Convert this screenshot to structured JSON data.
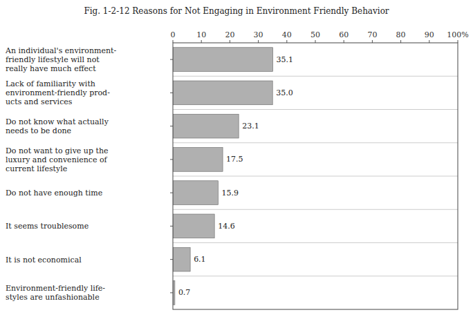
{
  "chart_data": {
    "type": "bar",
    "orientation": "horizontal",
    "title": "Fig. 1-2-12 Reasons for Not Engaging in Environment Friendly Behavior",
    "categories": [
      "An individual's environment-\nfriendly lifestyle will not\nreally have much effect",
      "Lack of familiarity with\nenvironment-friendly prod-\nucts and services",
      "Do not know what actually\nneeds to be done",
      "Do not want to give up the\nluxury and convenience of\ncurrent lifestyle",
      "Do not have enough time",
      "It seems troublesome",
      "It is not economical",
      "Environment-friendly life-\nstyles are unfashionable"
    ],
    "values": [
      35.1,
      35.0,
      23.1,
      17.5,
      15.9,
      14.6,
      6.1,
      0.7
    ],
    "value_labels": [
      "35.1",
      "35.0",
      "23.1",
      "17.5",
      "15.9",
      "14.6",
      "6.1",
      "0.7"
    ],
    "data_labels": true,
    "color": "#b0b0b0",
    "xlim": [
      0,
      100
    ],
    "xticks": [
      0,
      10,
      20,
      30,
      40,
      50,
      60,
      70,
      80,
      90,
      {
        "value": 100,
        "label": "100%"
      }
    ],
    "grid": false
  }
}
